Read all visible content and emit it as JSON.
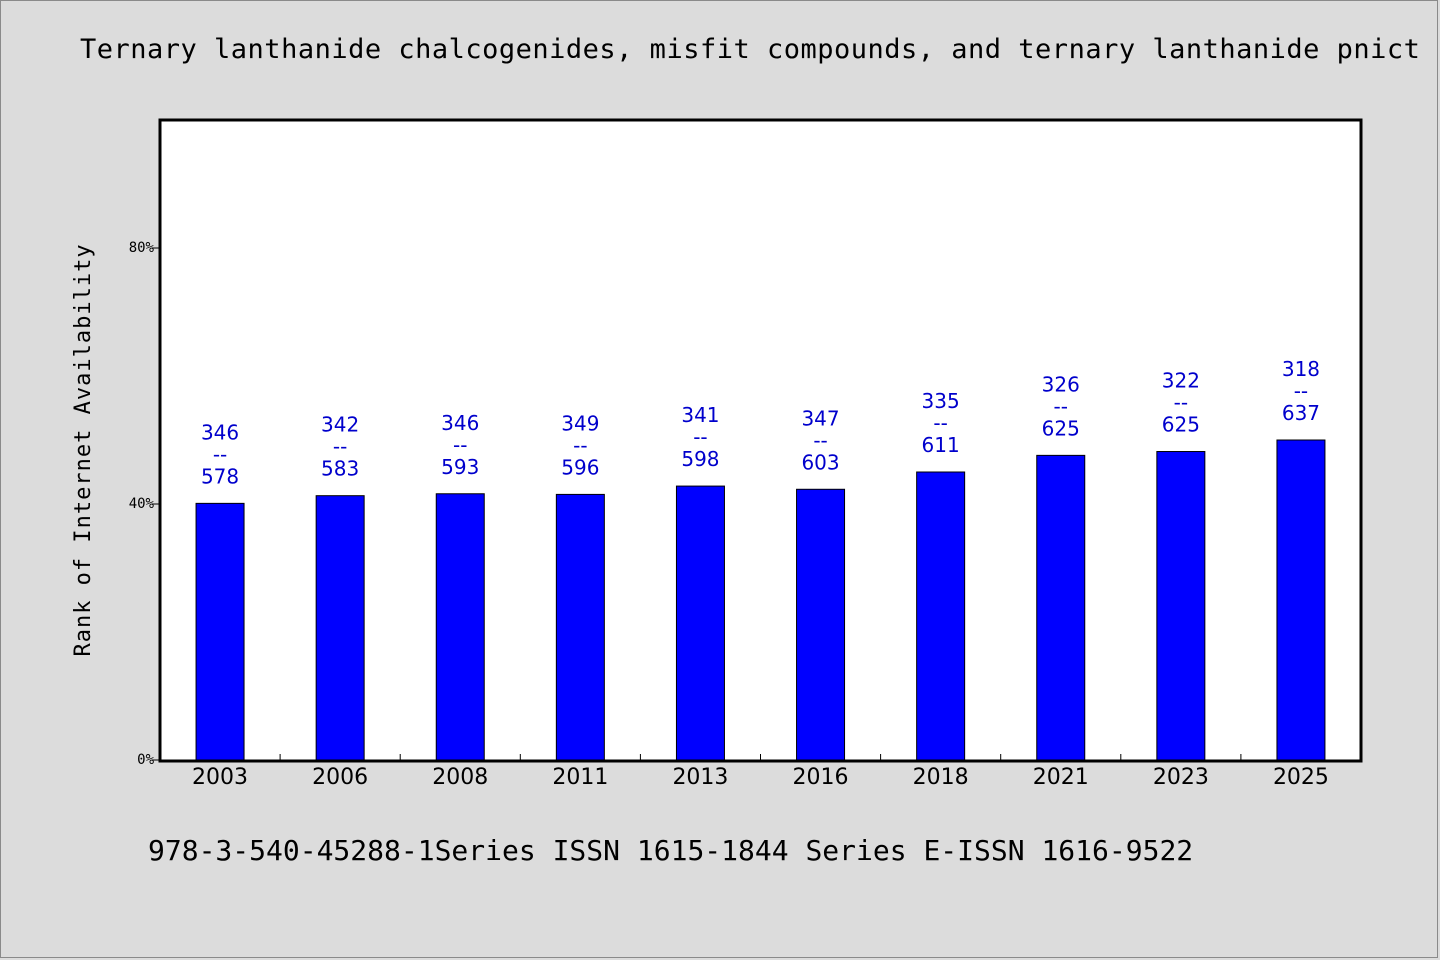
{
  "chart_data": {
    "type": "bar",
    "title": "Ternary lanthanide chalcogenides, misfit compounds, and ternary lanthanide pnict",
    "ylabel": "Rank of Internet Availability",
    "xlabel": "",
    "ylim": [
      0,
      100
    ],
    "yticks": [
      {
        "value": 0,
        "label": "0%"
      },
      {
        "value": 40,
        "label": "40%"
      },
      {
        "value": 80,
        "label": "80%"
      }
    ],
    "grid": false,
    "bar_color": "#0000ff",
    "label_color": "#0000cc",
    "categories": [
      "2003",
      "2006",
      "2008",
      "2011",
      "2013",
      "2016",
      "2018",
      "2021",
      "2023",
      "2025"
    ],
    "values": [
      40.1,
      41.3,
      41.6,
      41.5,
      42.8,
      42.3,
      45.0,
      47.6,
      48.2,
      50.0
    ],
    "bar_labels": [
      [
        "346",
        "--",
        "578"
      ],
      [
        "342",
        "--",
        "583"
      ],
      [
        "346",
        "--",
        "593"
      ],
      [
        "349",
        "--",
        "596"
      ],
      [
        "341",
        "--",
        "598"
      ],
      [
        "347",
        "--",
        "603"
      ],
      [
        "335",
        "--",
        "611"
      ],
      [
        "326",
        "--",
        "625"
      ],
      [
        "322",
        "--",
        "625"
      ],
      [
        "318",
        "--",
        "637"
      ]
    ]
  },
  "footer": "978-3-540-45288-1Series ISSN 1615-1844 Series E-ISSN 1616-9522"
}
